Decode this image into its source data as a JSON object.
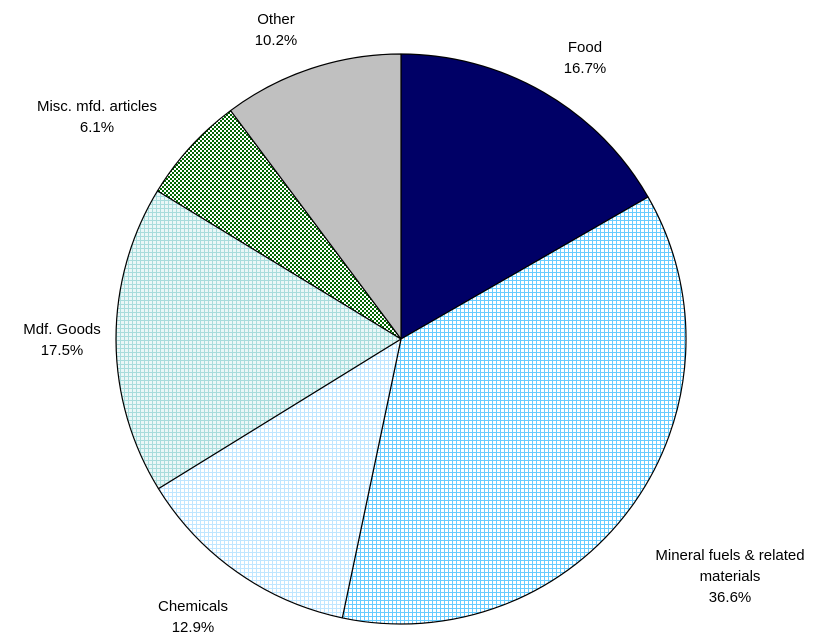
{
  "chart_data": {
    "type": "pie",
    "title": "",
    "start_angle_deg": 0,
    "direction": "clockwise",
    "slices": [
      {
        "label": "Food",
        "value": 16.7,
        "display": "16.7%",
        "color": "#000066",
        "fill_style": "solid",
        "pattern_color": "#000066",
        "pattern_bg": "#000066",
        "label_lines": [
          "Food",
          "16.7%"
        ]
      },
      {
        "label": "Mineral fuels & related materials",
        "value": 36.6,
        "display": "36.6%",
        "color": "#66CCFF",
        "fill_style": "fine-grid",
        "pattern_color": "#66CCFF",
        "pattern_bg": "#FFFFFF",
        "label_lines": [
          "Mineral fuels & related",
          "materials",
          "36.6%"
        ]
      },
      {
        "label": "Chemicals",
        "value": 12.9,
        "display": "12.9%",
        "color": "#CCEEFF",
        "fill_style": "fine-grid",
        "pattern_color": "#BFE6FF",
        "pattern_bg": "#FFFFFF",
        "label_lines": [
          "Chemicals",
          "12.9%"
        ]
      },
      {
        "label": "Mdf. Goods",
        "value": 17.5,
        "display": "17.5%",
        "color": "#AADDDD",
        "fill_style": "fine-grid",
        "pattern_color": "#A8DCDC",
        "pattern_bg": "#EAF7F7",
        "label_lines": [
          "Mdf. Goods",
          "17.5%"
        ]
      },
      {
        "label": "Misc. mfd. articles",
        "value": 6.1,
        "display": "6.1%",
        "color": "#006600",
        "fill_style": "checker",
        "pattern_color": "#006600",
        "pattern_bg": "#FFFFFF",
        "label_lines": [
          "Misc. mfd. articles",
          "6.1%"
        ]
      },
      {
        "label": "Other",
        "value": 10.2,
        "display": "10.2%",
        "color": "#C0C0C0",
        "fill_style": "solid",
        "pattern_color": "#C0C0C0",
        "pattern_bg": "#C0C0C0",
        "label_lines": [
          "Other",
          "10.2%"
        ]
      }
    ]
  }
}
